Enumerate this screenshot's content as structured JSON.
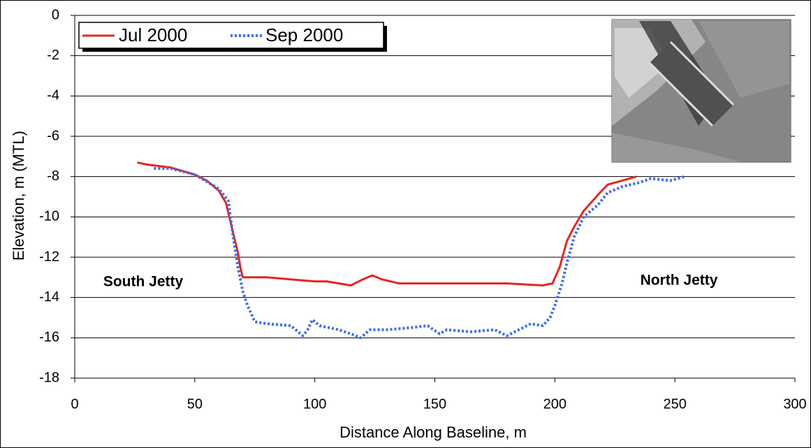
{
  "chart_data": {
    "type": "line",
    "xlabel": "Distance Along Baseline, m",
    "ylabel": "Elevation, m (MTL)",
    "xlim": [
      0,
      300
    ],
    "xticks": [
      0,
      50,
      100,
      150,
      200,
      250,
      300
    ],
    "ylim": [
      -18,
      0
    ],
    "yticks": [
      0,
      -2,
      -4,
      -6,
      -8,
      -10,
      -12,
      -14,
      -16,
      -18
    ],
    "grid": true,
    "legend": "top-left",
    "annotations": [
      "South Jetty",
      "North Jetty"
    ],
    "series": [
      {
        "name": "Jul 2000",
        "color": "#e8261e",
        "style": "solid",
        "x": [
          26,
          30,
          40,
          50,
          55,
          60,
          63,
          64,
          66,
          68,
          69,
          70,
          75,
          80,
          90,
          100,
          105,
          110,
          115,
          120,
          124,
          128,
          135,
          145,
          160,
          180,
          195,
          199,
          202,
          205,
          208,
          212,
          218,
          222,
          228,
          234
        ],
        "values": [
          -7.3,
          -7.4,
          -7.55,
          -7.9,
          -8.2,
          -8.7,
          -9.3,
          -9.8,
          -10.8,
          -11.8,
          -12.5,
          -13.0,
          -13.0,
          -13.0,
          -13.1,
          -13.2,
          -13.2,
          -13.3,
          -13.4,
          -13.1,
          -12.9,
          -13.1,
          -13.3,
          -13.3,
          -13.3,
          -13.3,
          -13.4,
          -13.3,
          -12.5,
          -11.2,
          -10.5,
          -9.7,
          -8.9,
          -8.4,
          -8.2,
          -8.0
        ]
      },
      {
        "name": "Sep 2000",
        "color": "#3d6cf0",
        "style": "dotted",
        "x": [
          33,
          40,
          50,
          60,
          64,
          66,
          68,
          70,
          72,
          75,
          80,
          90,
          95,
          97,
          99,
          102,
          110,
          115,
          119,
          123,
          130,
          140,
          147,
          152,
          155,
          165,
          175,
          180,
          190,
          195,
          198,
          200,
          203,
          205,
          208,
          212,
          218,
          222,
          228,
          235,
          240,
          248,
          254
        ],
        "values": [
          -7.6,
          -7.6,
          -7.9,
          -8.6,
          -9.2,
          -11.0,
          -12.5,
          -13.7,
          -14.4,
          -15.2,
          -15.3,
          -15.4,
          -15.9,
          -15.6,
          -15.1,
          -15.4,
          -15.6,
          -15.8,
          -16.0,
          -15.6,
          -15.6,
          -15.5,
          -15.4,
          -15.8,
          -15.6,
          -15.7,
          -15.6,
          -15.9,
          -15.3,
          -15.4,
          -15.0,
          -14.4,
          -13.3,
          -12.3,
          -11.0,
          -10.0,
          -9.4,
          -8.8,
          -8.5,
          -8.3,
          -8.1,
          -8.2,
          -8.0
        ]
      }
    ]
  }
}
